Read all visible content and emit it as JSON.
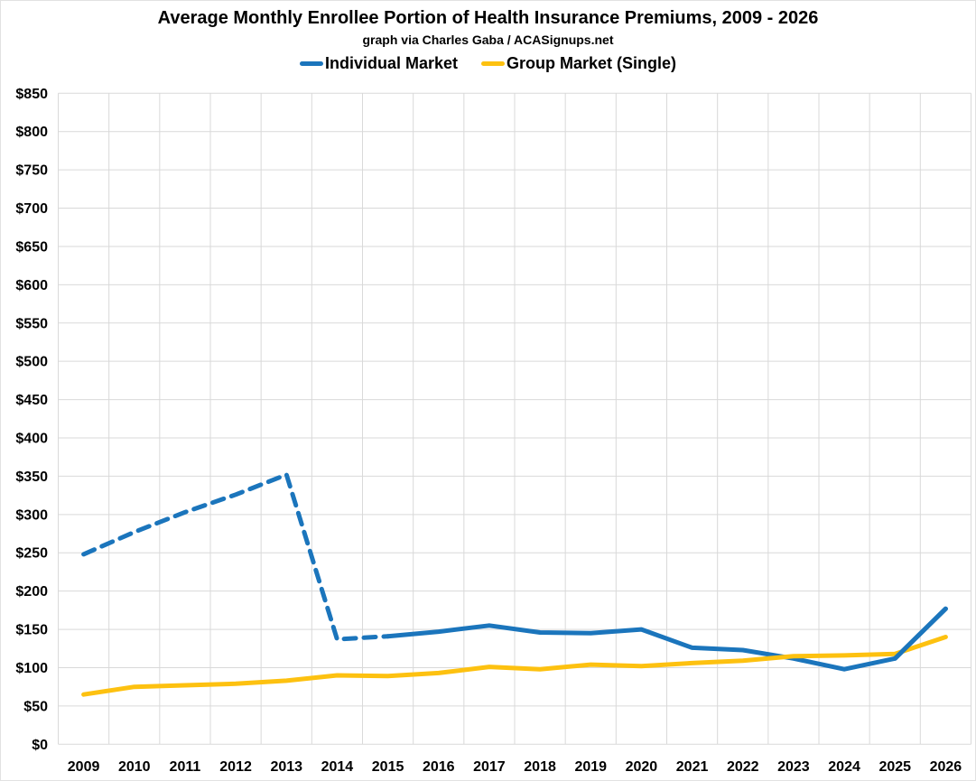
{
  "chart_data": {
    "type": "line",
    "title": "Average Monthly Enrollee Portion of Health Insurance Premiums, 2009 - 2026",
    "subtitle": "graph via Charles Gaba / ACASignups.net",
    "categories": [
      "2009",
      "2010",
      "2011",
      "2012",
      "2013",
      "2014",
      "2015",
      "2016",
      "2017",
      "2018",
      "2019",
      "2020",
      "2021",
      "2022",
      "2023",
      "2024",
      "2025",
      "2026"
    ],
    "series": [
      {
        "name": "Individual Market",
        "color": "#1B75BC",
        "line_style": "dashed from 2009 through 2015, solid from 2015 through 2026",
        "dashed_end_index": 6,
        "values": [
          248,
          277,
          303,
          326,
          352,
          137,
          141,
          147,
          155,
          146,
          145,
          150,
          126,
          123,
          112,
          98,
          112,
          177
        ]
      },
      {
        "name": "Group Market (Single)",
        "color": "#FDC110",
        "line_style": "solid",
        "values": [
          65,
          75,
          77,
          79,
          83,
          90,
          89,
          93,
          101,
          98,
          104,
          102,
          106,
          109,
          115,
          116,
          118,
          140
        ]
      }
    ],
    "xlabel": "",
    "ylabel": "",
    "ylim": [
      0,
      850
    ],
    "ytick_step": 50,
    "ytick_prefix": "$",
    "grid": true,
    "legend_position": "top"
  },
  "colors": {
    "grid": "#D9D9D9",
    "axis_text": "#000000",
    "background": "#FFFFFF"
  }
}
